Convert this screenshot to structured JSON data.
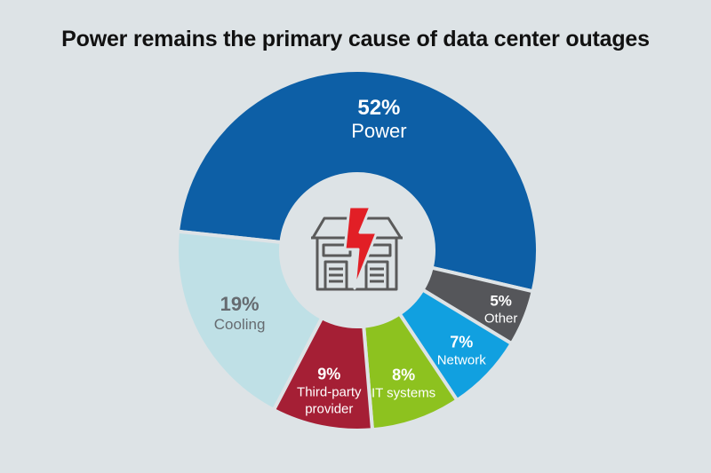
{
  "chart_data": {
    "type": "pie",
    "title": "Power remains the primary cause of data center outages",
    "slices": [
      {
        "label": "Power",
        "value": 52,
        "value_label": "52%",
        "color": "#0d5fa6"
      },
      {
        "label": "Other",
        "value": 5,
        "value_label": "5%",
        "color": "#55565a"
      },
      {
        "label": "Network",
        "value": 7,
        "value_label": "7%",
        "color": "#11a0e0"
      },
      {
        "label": "IT systems",
        "value": 8,
        "value_label": "8%",
        "color": "#8dc21f"
      },
      {
        "label": "Third-party provider",
        "value": 9,
        "value_label": "9%",
        "color": "#a51f35"
      },
      {
        "label": "Cooling",
        "value": 19,
        "value_label": "19%",
        "color": "#bfe0e6"
      }
    ],
    "center_icon": "building-lightning-icon",
    "legend": "none"
  }
}
